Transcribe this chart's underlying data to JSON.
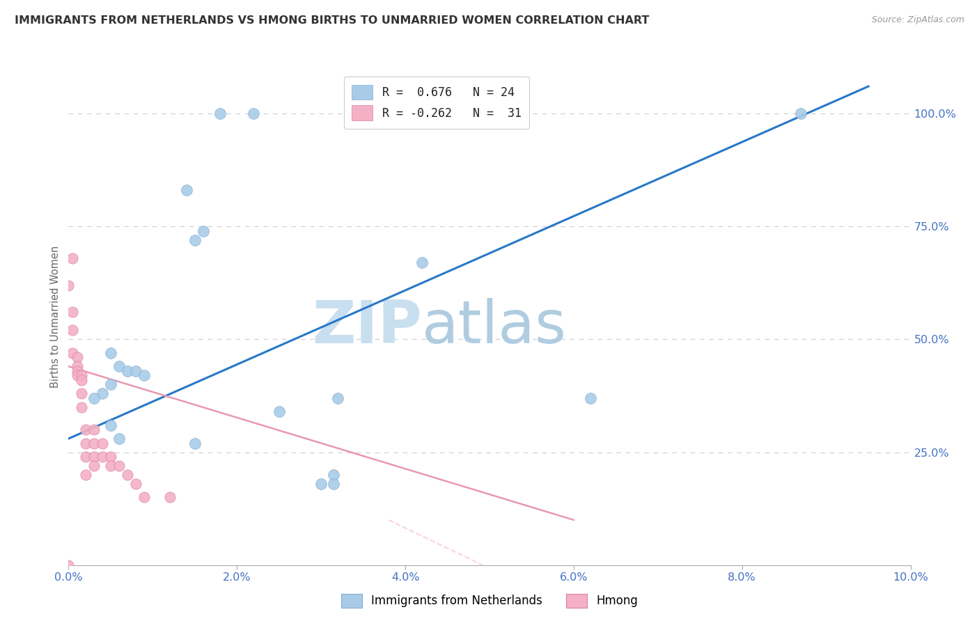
{
  "title": "IMMIGRANTS FROM NETHERLANDS VS HMONG BIRTHS TO UNMARRIED WOMEN CORRELATION CHART",
  "source": "Source: ZipAtlas.com",
  "ylabel": "Births to Unmarried Women",
  "x_tick_labels": [
    "0.0%",
    "2.0%",
    "4.0%",
    "6.0%",
    "8.0%",
    "10.0%"
  ],
  "y_tick_labels_right": [
    "100.0%",
    "75.0%",
    "50.0%",
    "25.0%"
  ],
  "y_tick_values_right": [
    100.0,
    75.0,
    50.0,
    25.0
  ],
  "xlim": [
    0.0,
    10.0
  ],
  "ylim": [
    0.0,
    110.0
  ],
  "legend_r1": "R =  0.676",
  "legend_n1": "N = 24",
  "legend_r2": "R = -0.262",
  "legend_n2": "N =  31",
  "color_blue": "#a8cce8",
  "color_pink": "#f4b0c5",
  "color_trend_blue": "#2878c8",
  "color_trend_pink": "#f0a0b8",
  "color_axis_labels": "#4472c4",
  "color_title": "#333333",
  "watermark_zip": "ZIP",
  "watermark_atlas": "atlas",
  "watermark_color_zip": "#cce0f5",
  "watermark_color_atlas": "#b8d0e8",
  "blue_dots_x": [
    1.8,
    2.2,
    1.4,
    1.6,
    0.5,
    0.6,
    0.7,
    0.8,
    0.9,
    0.5,
    0.4,
    0.3,
    0.5,
    0.6,
    2.5,
    4.2,
    3.15,
    3.0,
    3.15,
    3.2,
    6.2,
    8.7,
    1.5,
    1.5
  ],
  "blue_dots_y": [
    100,
    100,
    83,
    74,
    47,
    44,
    43,
    43,
    42,
    40,
    38,
    37,
    31,
    28,
    34,
    67,
    20,
    18,
    18,
    37,
    37,
    100,
    72,
    27
  ],
  "pink_dots_x": [
    0.0,
    0.05,
    0.05,
    0.05,
    0.1,
    0.1,
    0.1,
    0.1,
    0.15,
    0.15,
    0.15,
    0.15,
    0.2,
    0.2,
    0.2,
    0.2,
    0.3,
    0.3,
    0.3,
    0.3,
    0.4,
    0.4,
    0.5,
    0.5,
    0.6,
    0.7,
    0.8,
    0.9,
    1.2,
    0.05,
    0.0
  ],
  "pink_dots_y": [
    62,
    56,
    52,
    47,
    46,
    44,
    43,
    42,
    42,
    41,
    38,
    35,
    30,
    27,
    24,
    20,
    30,
    27,
    24,
    22,
    27,
    24,
    24,
    22,
    22,
    20,
    18,
    15,
    15,
    68,
    0
  ],
  "blue_trend_x": [
    0.0,
    9.5
  ],
  "blue_trend_y": [
    28.0,
    106.0
  ],
  "pink_trend_x": [
    0.0,
    3.8
  ],
  "pink_trend_y": [
    44.0,
    10.0
  ],
  "background_color": "#ffffff",
  "grid_color": "#cccccc"
}
